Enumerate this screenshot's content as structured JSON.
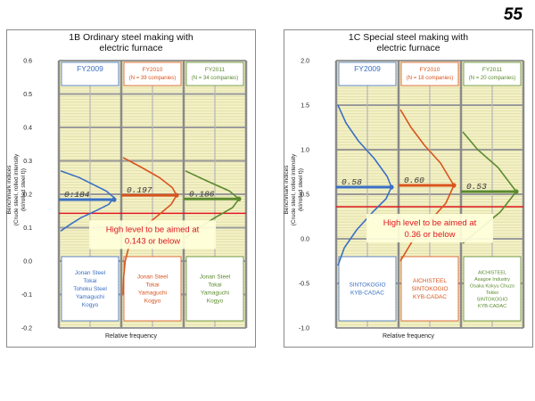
{
  "page_number": "55",
  "chart_data": [
    {
      "type": "line",
      "title": "1B Ordinary steel making with electric furnace",
      "title_lines": [
        "1B Ordinary steel making with",
        "electric furnace"
      ],
      "ylabel": "Benchmark indices (Crude steel, rolled intensity (kl/rolled steel t))",
      "ylabel_lines": [
        "Benchmark indices",
        "(Crude steel, rolled intensity (kl/rolled steel t))"
      ],
      "xlabel": "Relative frequency",
      "ylim": [
        -0.2,
        0.6
      ],
      "yticks": [
        "0.6",
        "0.5",
        "0.4",
        "0.3",
        "0.2",
        "0.1",
        "0.0",
        "-0.1",
        "-0.2"
      ],
      "target_value": 0.143,
      "target_text": [
        "High level to be aimed at",
        "0.143 or below"
      ],
      "periods": [
        {
          "name": "FY2009",
          "sub": "",
          "average": 0.184,
          "avg_label": "0:184",
          "color": "#3a6fc4",
          "curve_y": [
            0.27,
            0.25,
            0.23,
            0.21,
            0.19,
            0.17,
            0.15,
            0.13,
            0.11,
            0.09
          ],
          "curve_rel": [
            0.0,
            0.35,
            0.6,
            0.85,
            1.0,
            0.9,
            0.65,
            0.38,
            0.18,
            0.0
          ],
          "companies": [
            "Jonan Steel",
            "Tokai",
            "Tohoku Steel",
            "Yamaguchi",
            "Kogyo"
          ]
        },
        {
          "name": "FY2010",
          "sub": "(N = 39 companies)",
          "average": 0.197,
          "avg_label": "0.197",
          "color": "#d9541e",
          "curve_y": [
            0.31,
            0.28,
            0.25,
            0.22,
            0.197,
            0.17,
            0.14,
            0.11,
            0.08,
            0.05,
            0.0,
            -0.05,
            -0.1
          ],
          "curve_rel": [
            0.0,
            0.35,
            0.68,
            0.92,
            1.0,
            0.9,
            0.68,
            0.45,
            0.26,
            0.12,
            0.04,
            0.01,
            0.0
          ],
          "companies": [
            "Jonan Steel",
            "Tokai",
            "Yamaguchi",
            "Kogyo"
          ]
        },
        {
          "name": "FY2011",
          "sub": "(N = 34 companies)",
          "average": 0.186,
          "avg_label": "0.186",
          "color": "#5b8a2e",
          "curve_y": [
            0.27,
            0.24,
            0.21,
            0.186,
            0.16,
            0.13,
            0.1,
            0.07
          ],
          "curve_rel": [
            0.0,
            0.4,
            0.82,
            1.0,
            0.88,
            0.55,
            0.25,
            0.0
          ],
          "companies": [
            "Jonan Steel",
            "Tokai",
            "Yamaguchi",
            "Kogyo"
          ]
        }
      ]
    },
    {
      "type": "line",
      "title": "1C Special steel making with electric furnace",
      "title_lines": [
        "1C Special steel making with",
        "electric furnace"
      ],
      "ylabel": "Benchmark indices (Crude steel, rolled intensity (kl/rolled steel t))",
      "ylabel_lines": [
        "Benchmark indices",
        "(Crude steel, rolled intensity (kl/rolled steel t))"
      ],
      "xlabel": "Relative frequency",
      "ylim": [
        -1.0,
        2.0
      ],
      "yticks": [
        "2.0",
        "1.5",
        "1.0",
        "0.5",
        "0.0",
        "-0.5",
        "-1.0"
      ],
      "target_value": 0.36,
      "target_text": [
        "High level to be aimed at",
        "0.36 or below"
      ],
      "periods": [
        {
          "name": "FY2009",
          "sub": "",
          "average": 0.58,
          "avg_label": "0.58",
          "color": "#3a6fc4",
          "curve_y": [
            1.5,
            1.3,
            1.1,
            0.9,
            0.7,
            0.58,
            0.45,
            0.3,
            0.1,
            -0.1,
            -0.3
          ],
          "curve_rel": [
            0.0,
            0.15,
            0.38,
            0.68,
            0.92,
            1.0,
            0.9,
            0.65,
            0.35,
            0.12,
            0.0
          ],
          "companies": [
            "SINTOKOGIO",
            "KYB-CADAC"
          ]
        },
        {
          "name": "FY2010",
          "sub": "(N = 18 companies)",
          "average": 0.6,
          "avg_label": "0.60",
          "color": "#d9541e",
          "curve_y": [
            1.45,
            1.25,
            1.05,
            0.85,
            0.6,
            0.4,
            0.2,
            0.0,
            -0.25
          ],
          "curve_rel": [
            0.0,
            0.2,
            0.45,
            0.75,
            1.0,
            0.85,
            0.55,
            0.25,
            0.0
          ],
          "companies": [
            "AICHISTEEL",
            "SINTOKOGIO",
            "KYB-CADAC"
          ]
        },
        {
          "name": "FY2011",
          "sub": "(N = 20 companies)",
          "average": 0.53,
          "avg_label": "0.53",
          "color": "#5b8a2e",
          "curve_y": [
            1.2,
            1.0,
            0.8,
            0.53,
            0.3,
            0.1,
            -0.05
          ],
          "curve_rel": [
            0.0,
            0.28,
            0.66,
            1.0,
            0.7,
            0.3,
            0.0
          ],
          "companies": [
            "AICHISTEEL",
            "Asagoe Industry",
            "Osaka Kokyu Chuzo",
            "Tekko",
            "SINTOKOGIO",
            "KYB-CADAC"
          ]
        }
      ]
    }
  ]
}
